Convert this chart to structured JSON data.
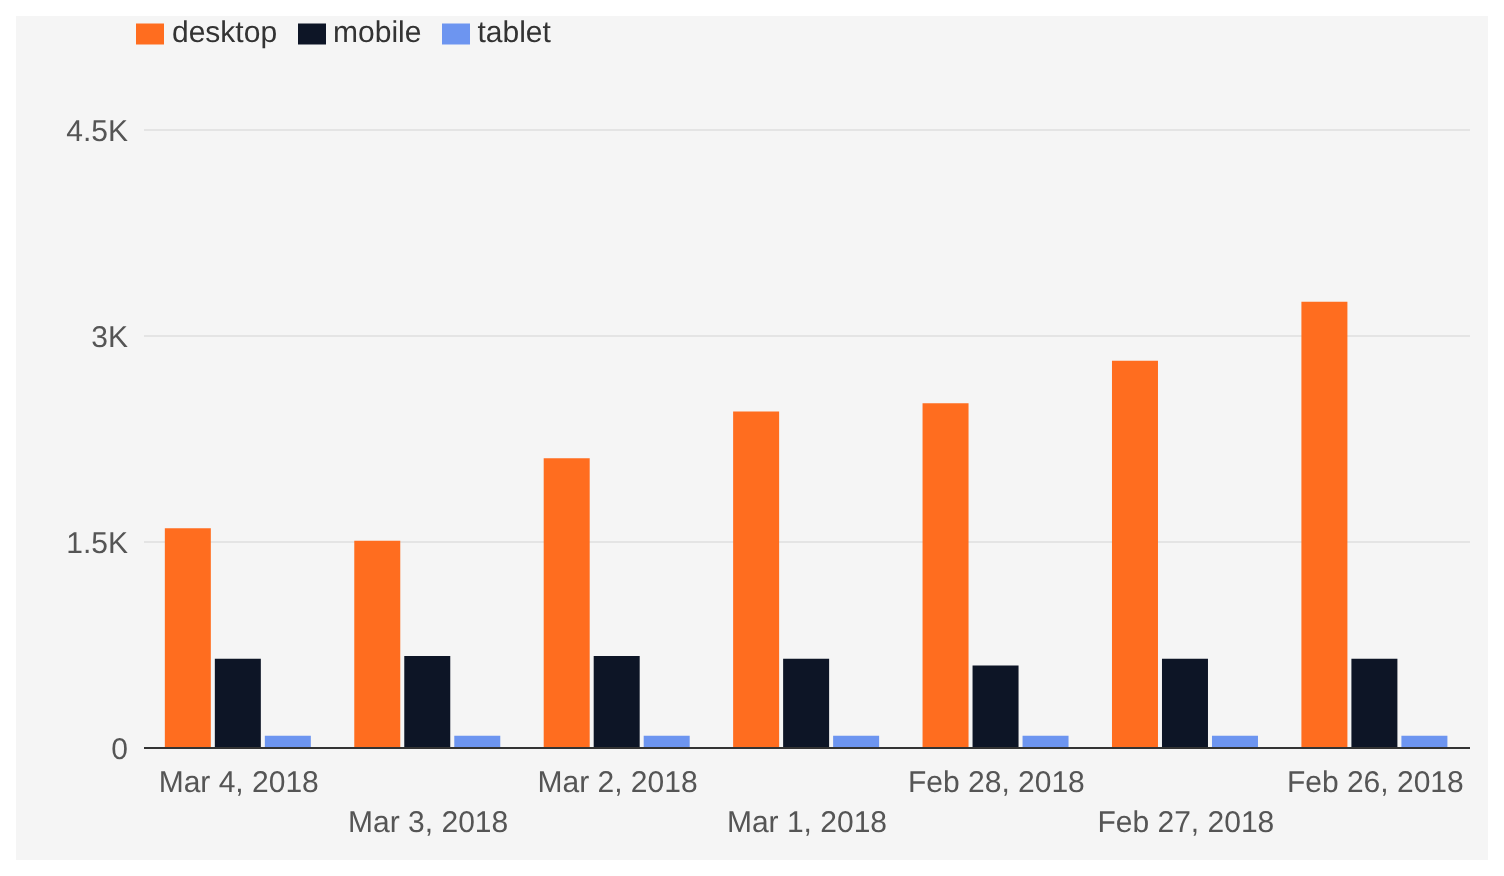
{
  "chart_data": {
    "type": "bar",
    "categories": [
      "Mar 4, 2018",
      "Mar 3, 2018",
      "Mar 2, 2018",
      "Mar 1, 2018",
      "Feb 28, 2018",
      "Feb 27, 2018",
      "Feb 26, 2018"
    ],
    "series": [
      {
        "name": "desktop",
        "color": "#ff6d1f",
        "values": [
          1600,
          1510,
          2110,
          2450,
          2510,
          2820,
          3250
        ]
      },
      {
        "name": "mobile",
        "color": "#0d1526",
        "values": [
          650,
          670,
          670,
          650,
          600,
          650,
          650
        ]
      },
      {
        "name": "tablet",
        "color": "#6d95f0",
        "values": [
          90,
          90,
          90,
          90,
          90,
          90,
          90
        ]
      }
    ],
    "ylim": [
      0,
      4500
    ],
    "yticks": [
      {
        "value": 0,
        "label": "0"
      },
      {
        "value": 1500,
        "label": "1.5K"
      },
      {
        "value": 3000,
        "label": "3K"
      },
      {
        "value": 4500,
        "label": "4.5K"
      }
    ],
    "grid": "y",
    "legend": "top left"
  }
}
